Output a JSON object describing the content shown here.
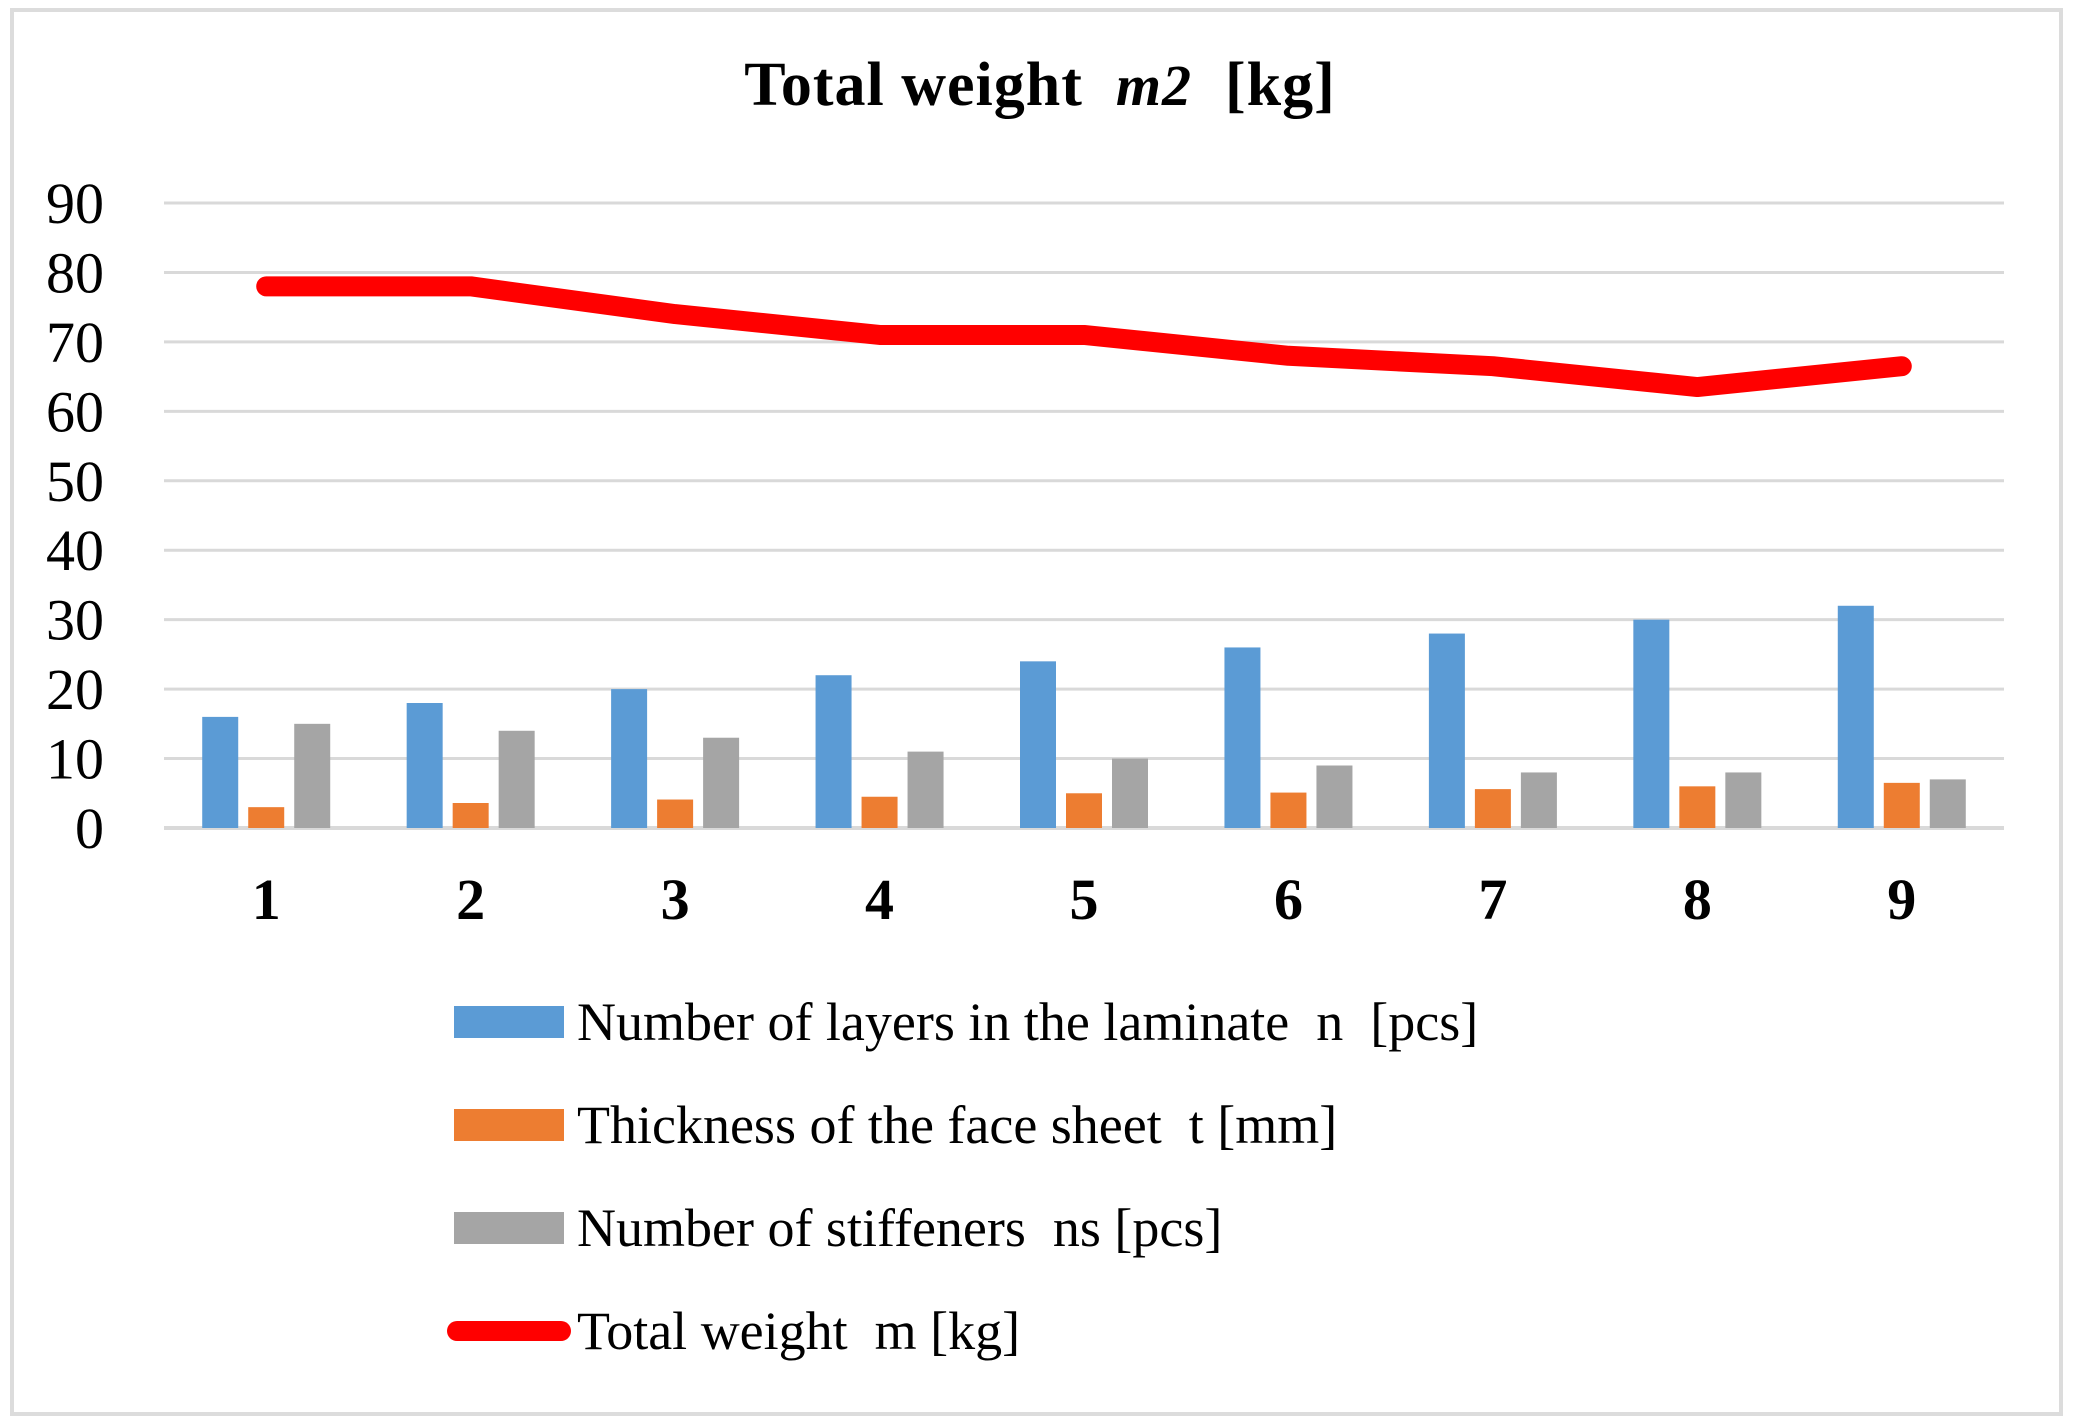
{
  "chart_data": {
    "type": "bar",
    "subtype": "clustered-column-with-line-overlay",
    "title": "Total weight  m2  [kg]",
    "title_parts": {
      "prefix": "Total weight  ",
      "emphasis": "m2",
      "suffix": "  [kg]"
    },
    "categories": [
      "1",
      "2",
      "3",
      "4",
      "5",
      "6",
      "7",
      "8",
      "9"
    ],
    "series": [
      {
        "name": "Number of layers in the laminate  n  [pcs]",
        "render": "column",
        "color": "#5B9BD5",
        "values": [
          16,
          18,
          20,
          22,
          24,
          26,
          28,
          30,
          32
        ]
      },
      {
        "name": "Thickness of the face sheet  t [mm]",
        "render": "column",
        "color": "#ED7D31",
        "values": [
          3.0,
          3.6,
          4.1,
          4.5,
          5.0,
          5.1,
          5.6,
          6.0,
          6.5
        ]
      },
      {
        "name": "Number of stiffeners  ns [pcs]",
        "render": "column",
        "color": "#A5A5A5",
        "values": [
          15,
          14,
          13,
          11,
          10,
          9,
          8,
          8,
          7
        ]
      },
      {
        "name": "Total weight  m [kg]",
        "render": "line",
        "color": "#FF0000",
        "values": [
          78,
          78,
          74,
          71,
          71,
          68,
          66.5,
          63.5,
          66.5
        ]
      }
    ],
    "xlabel": "",
    "ylabel": "",
    "ylim": [
      0,
      90
    ],
    "yticks": [
      90,
      80,
      70,
      60,
      50,
      40,
      30,
      20,
      10,
      0
    ],
    "grid": "horizontal",
    "gridline_color": "#D9D9D9",
    "axis_line_color": "#D9D9D9",
    "legend_position": "bottom-left",
    "background_color": "#FFFFFF",
    "frame_border_color": "#DCDCDC"
  }
}
